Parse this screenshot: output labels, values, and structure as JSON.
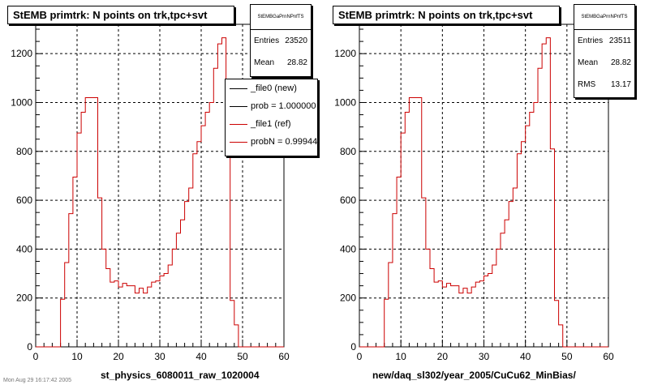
{
  "colors": {
    "ref": "#cc0000",
    "new": "#000000",
    "grid": "#000000"
  },
  "footer_text": "Mon Aug 29 16:17:42 2005",
  "panels": [
    {
      "title": "StEMB primtrk: N points on trk,tpc+svt",
      "xcaption": "st_physics_6080011_raw_1020004",
      "stats": {
        "name": "StEMBGaPrnNPnfTS",
        "rows": [
          {
            "label": "Entries",
            "value": "23520"
          },
          {
            "label": "Mean",
            "value": "28.82"
          }
        ]
      },
      "legend": [
        {
          "label": "_file0 (new)",
          "color": "#000000"
        },
        {
          "label": "prob = 1.000000",
          "color": "#000000"
        },
        {
          "label": "_file1 (ref)",
          "color": "#cc0000"
        },
        {
          "label": "probN = 0.99944",
          "color": "#cc0000"
        }
      ]
    },
    {
      "title": "StEMB primtrk: N points on trk,tpc+svt",
      "xcaption": "new/daq_sl302/year_2005/CuCu62_MinBias/",
      "stats": {
        "name": "StEMBGaPrnNPnfTS",
        "rows": [
          {
            "label": "Entries",
            "value": "23511"
          },
          {
            "label": "Mean",
            "value": "28.82"
          },
          {
            "label": "RMS",
            "value": "13.17"
          }
        ]
      },
      "legend": []
    }
  ],
  "chart_data": [
    {
      "type": "line",
      "title": "StEMB primtrk: N points on trk,tpc+svt",
      "xlabel": "st_physics_6080011_raw_1020004",
      "ylabel": "",
      "xlim": [
        0,
        60
      ],
      "ylim": [
        0,
        1320
      ],
      "xticks": [
        0,
        10,
        20,
        30,
        40,
        50,
        60
      ],
      "yticks": [
        0,
        200,
        400,
        600,
        800,
        1000,
        1200
      ],
      "grid": true,
      "series": [
        {
          "name": "_file1 (ref)",
          "color": "#cc0000",
          "bin_width": 1,
          "bin_edges_start": 0,
          "values": [
            0,
            0,
            0,
            0,
            0,
            0,
            195,
            345,
            545,
            695,
            875,
            960,
            1020,
            1020,
            1020,
            610,
            400,
            320,
            265,
            270,
            245,
            260,
            250,
            250,
            220,
            240,
            220,
            245,
            265,
            270,
            290,
            300,
            335,
            400,
            465,
            520,
            595,
            650,
            790,
            840,
            905,
            960,
            1000,
            1140,
            1240,
            1265,
            810,
            190,
            90,
            0,
            0,
            0,
            0,
            0,
            0,
            0,
            0,
            0,
            0,
            0
          ]
        }
      ]
    },
    {
      "type": "line",
      "title": "StEMB primtrk: N points on trk,tpc+svt",
      "xlabel": "new/daq_sl302/year_2005/CuCu62_MinBias/",
      "ylabel": "",
      "xlim": [
        0,
        60
      ],
      "ylim": [
        0,
        1320
      ],
      "xticks": [
        0,
        10,
        20,
        30,
        40,
        50,
        60
      ],
      "yticks": [
        0,
        200,
        400,
        600,
        800,
        1000,
        1200
      ],
      "grid": true,
      "series": [
        {
          "color": "#cc0000",
          "bin_width": 1,
          "bin_edges_start": 0,
          "values": [
            0,
            0,
            0,
            0,
            0,
            0,
            195,
            345,
            545,
            695,
            875,
            960,
            1020,
            1020,
            1020,
            610,
            400,
            320,
            265,
            270,
            245,
            260,
            250,
            250,
            220,
            240,
            220,
            245,
            265,
            270,
            290,
            300,
            335,
            400,
            465,
            520,
            595,
            650,
            790,
            840,
            905,
            960,
            1000,
            1140,
            1240,
            1265,
            810,
            190,
            90,
            0,
            0,
            0,
            0,
            0,
            0,
            0,
            0,
            0,
            0,
            0
          ]
        }
      ]
    }
  ]
}
